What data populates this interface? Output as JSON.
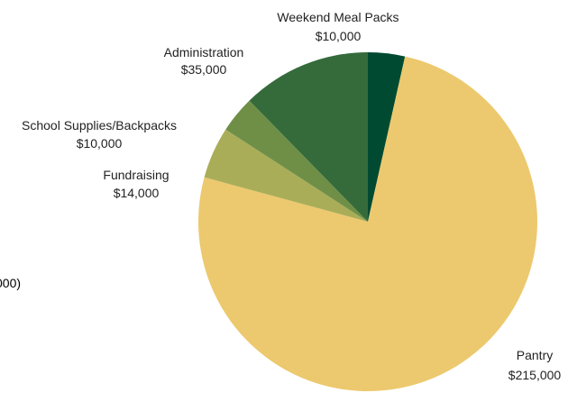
{
  "chart_data": {
    "type": "pie",
    "slices": [
      {
        "label": "Weekend Meal Packs",
        "value_label": "$10,000",
        "value": 10000,
        "color": "#014a32"
      },
      {
        "label": "Pantry",
        "value_label": "$215,000",
        "value": 215000,
        "color": "#ecc96e"
      },
      {
        "label": "Fundraising",
        "value_label": "$14,000",
        "value": 14000,
        "color": "#aaad58"
      },
      {
        "label": "School Supplies/Backpacks",
        "value_label": "$10,000",
        "value": 10000,
        "color": "#6f8f47"
      },
      {
        "label": "Administration",
        "value_label": "$35,000",
        "value": 35000,
        "color": "#356b3b"
      }
    ],
    "start": "12 o'clock",
    "direction": "clockwise",
    "legend": "none",
    "offscreen_label_fragment": "000)"
  }
}
